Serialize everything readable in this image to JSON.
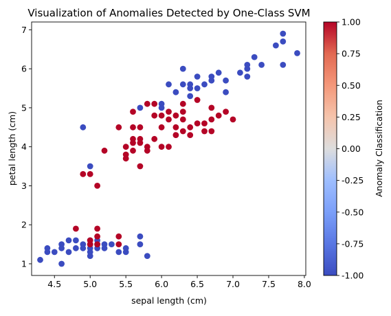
{
  "chart_data": {
    "type": "scatter",
    "title": "Visualization of Anomalies Detected by One-Class SVM",
    "xlabel": "sepal length (cm)",
    "ylabel": "petal length (cm)",
    "xlim": [
      4.18,
      8.02
    ],
    "ylim": [
      0.7,
      7.2
    ],
    "xticks": [
      "4.5",
      "5.0",
      "5.5",
      "6.0",
      "6.5",
      "7.0",
      "7.5",
      "8.0"
    ],
    "yticks": [
      "1",
      "2",
      "3",
      "4",
      "5",
      "6",
      "7"
    ],
    "grid": false,
    "legend": "none",
    "colorbar": {
      "label": "Anomaly Classification",
      "colormap": "coolwarm",
      "range": [
        -1.0,
        1.0
      ],
      "ticks": [
        "1.00",
        "0.75",
        "0.50",
        "0.25",
        "0.00",
        "-0.25",
        "-0.50",
        "-0.75",
        "-1.00"
      ],
      "colors": {
        "low": "#3b4cc0",
        "mid": "#dddddd",
        "high": "#b40426"
      }
    },
    "series": [
      {
        "value": -1,
        "color": "#3b4cc0",
        "points": [
          [
            4.3,
            1.1
          ],
          [
            4.4,
            1.3
          ],
          [
            4.4,
            1.4
          ],
          [
            4.5,
            1.3
          ],
          [
            4.6,
            1.0
          ],
          [
            4.6,
            1.4
          ],
          [
            4.6,
            1.5
          ],
          [
            4.7,
            1.3
          ],
          [
            4.7,
            1.6
          ],
          [
            4.8,
            1.4
          ],
          [
            4.8,
            1.6
          ],
          [
            4.9,
            1.4
          ],
          [
            4.9,
            1.5
          ],
          [
            5.0,
            1.2
          ],
          [
            5.0,
            1.3
          ],
          [
            5.0,
            1.4
          ],
          [
            5.0,
            1.5
          ],
          [
            5.0,
            1.6
          ],
          [
            5.1,
            1.4
          ],
          [
            5.1,
            1.5
          ],
          [
            5.1,
            1.6
          ],
          [
            5.2,
            1.4
          ],
          [
            5.2,
            1.5
          ],
          [
            5.3,
            1.5
          ],
          [
            5.4,
            1.3
          ],
          [
            5.5,
            1.3
          ],
          [
            5.5,
            1.4
          ],
          [
            5.7,
            1.5
          ],
          [
            5.7,
            1.7
          ],
          [
            5.8,
            1.2
          ],
          [
            4.9,
            4.5
          ],
          [
            5.0,
            3.5
          ],
          [
            5.7,
            5.0
          ],
          [
            6.0,
            5.0
          ],
          [
            6.1,
            5.6
          ],
          [
            6.2,
            5.4
          ],
          [
            6.3,
            5.6
          ],
          [
            6.3,
            6.0
          ],
          [
            6.4,
            5.3
          ],
          [
            6.4,
            5.5
          ],
          [
            6.4,
            5.6
          ],
          [
            6.5,
            5.8
          ],
          [
            6.5,
            5.5
          ],
          [
            6.7,
            5.7
          ],
          [
            6.7,
            5.8
          ],
          [
            6.8,
            5.9
          ],
          [
            6.9,
            5.7
          ],
          [
            6.9,
            5.4
          ],
          [
            7.1,
            5.9
          ],
          [
            7.2,
            5.8
          ],
          [
            7.2,
            6.0
          ],
          [
            7.2,
            6.1
          ],
          [
            7.3,
            6.3
          ],
          [
            7.4,
            6.1
          ],
          [
            7.6,
            6.6
          ],
          [
            7.7,
            6.7
          ],
          [
            7.7,
            6.9
          ],
          [
            7.7,
            6.1
          ],
          [
            7.9,
            6.4
          ],
          [
            6.6,
            5.6
          ],
          [
            6.0,
            5.1
          ]
        ]
      },
      {
        "value": 1,
        "color": "#b40426",
        "points": [
          [
            4.8,
            1.9
          ],
          [
            5.0,
            1.6
          ],
          [
            5.1,
            1.9
          ],
          [
            5.1,
            1.7
          ],
          [
            5.4,
            1.7
          ],
          [
            5.4,
            1.5
          ],
          [
            5.0,
            1.5
          ],
          [
            4.9,
            3.3
          ],
          [
            5.0,
            3.3
          ],
          [
            5.1,
            3.0
          ],
          [
            5.2,
            3.9
          ],
          [
            5.4,
            4.5
          ],
          [
            5.5,
            4.0
          ],
          [
            5.5,
            3.8
          ],
          [
            5.5,
            3.7
          ],
          [
            5.6,
            4.2
          ],
          [
            5.6,
            3.9
          ],
          [
            5.6,
            4.1
          ],
          [
            5.6,
            4.5
          ],
          [
            5.6,
            4.9
          ],
          [
            5.7,
            3.5
          ],
          [
            5.7,
            4.1
          ],
          [
            5.7,
            4.2
          ],
          [
            5.7,
            4.5
          ],
          [
            5.8,
            4.0
          ],
          [
            5.8,
            3.9
          ],
          [
            5.8,
            5.1
          ],
          [
            5.9,
            4.8
          ],
          [
            5.9,
            4.2
          ],
          [
            5.9,
            5.1
          ],
          [
            6.0,
            4.0
          ],
          [
            6.0,
            4.5
          ],
          [
            6.0,
            4.8
          ],
          [
            6.1,
            4.0
          ],
          [
            6.1,
            4.7
          ],
          [
            6.1,
            4.9
          ],
          [
            6.2,
            4.3
          ],
          [
            6.2,
            4.5
          ],
          [
            6.2,
            4.8
          ],
          [
            6.3,
            4.4
          ],
          [
            6.3,
            4.7
          ],
          [
            6.3,
            4.9
          ],
          [
            6.3,
            5.1
          ],
          [
            6.4,
            4.3
          ],
          [
            6.4,
            4.5
          ],
          [
            6.5,
            4.6
          ],
          [
            6.5,
            5.2
          ],
          [
            6.6,
            4.4
          ],
          [
            6.6,
            4.6
          ],
          [
            6.7,
            4.4
          ],
          [
            6.7,
            4.7
          ],
          [
            6.7,
            5.0
          ],
          [
            6.8,
            4.8
          ],
          [
            6.9,
            4.9
          ],
          [
            7.0,
            4.7
          ],
          [
            5.1,
            1.5
          ]
        ]
      }
    ]
  }
}
